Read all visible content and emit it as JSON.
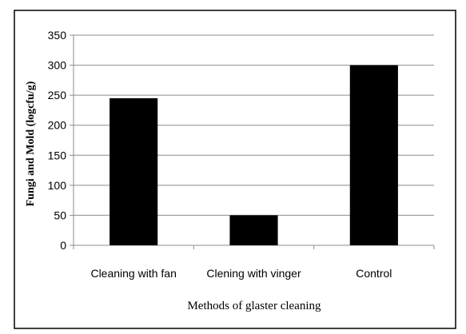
{
  "chart_data": {
    "type": "bar",
    "title": "",
    "xlabel": "Methods of glaster cleaning",
    "ylabel": "Fungi and Mold (logcfu/g)",
    "categories": [
      "Cleaning with fan",
      "Clening with vinger",
      "Control"
    ],
    "values": [
      245,
      50,
      300
    ],
    "ylim": [
      0,
      350
    ],
    "yticks": [
      "0",
      "50",
      "100",
      "150",
      "200",
      "250",
      "300",
      "350"
    ],
    "grid": true,
    "legend": "none",
    "bar_color": "#000000"
  }
}
